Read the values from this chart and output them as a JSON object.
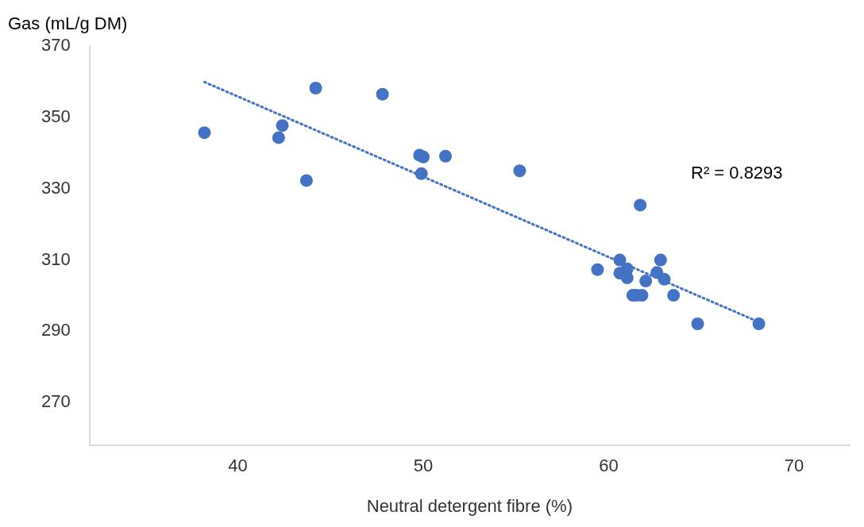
{
  "chart_data": {
    "type": "scatter",
    "xlabel": "Neutral detergent fibre (%)",
    "ylabel": "Gas (mL/g DM)",
    "x": [
      38.2,
      42.4,
      42.2,
      43.7,
      44.2,
      47.8,
      49.8,
      50.0,
      49.9,
      51.2,
      55.2,
      59.4,
      61.7,
      60.6,
      60.6,
      61.0,
      61.0,
      61.3,
      61.5,
      61.8,
      62.0,
      62.6,
      62.8,
      63.0,
      63.5,
      64.8,
      68.1
    ],
    "series": [
      {
        "color": "#4472c4",
        "values": [
          345.7,
          347.7,
          344.3,
          332.3,
          358.2,
          356.5,
          339.4,
          338.9,
          334.2,
          339.1,
          335.0,
          307.3,
          325.4,
          310.0,
          306.3,
          307.5,
          305.0,
          300.1,
          300.1,
          300.1,
          304.1,
          306.5,
          310.0,
          304.6,
          300.1,
          292.1,
          292.1
        ]
      },
      {
        "type": "line",
        "line_style": "dotted",
        "marker": "none",
        "color": "#4472c4",
        "x": [
          38.2,
          68.1
        ],
        "values": [
          359.9,
          292.6
        ]
      }
    ],
    "marker": "circle",
    "xlim": [
      32,
      73
    ],
    "xticks": [
      40,
      50,
      60,
      70
    ],
    "ylim": [
      258,
      370
    ],
    "yticks": [
      270,
      290,
      310,
      330,
      350,
      370
    ],
    "grid": false,
    "legend": false,
    "annotations": [
      "R² = 0.8293"
    ]
  }
}
